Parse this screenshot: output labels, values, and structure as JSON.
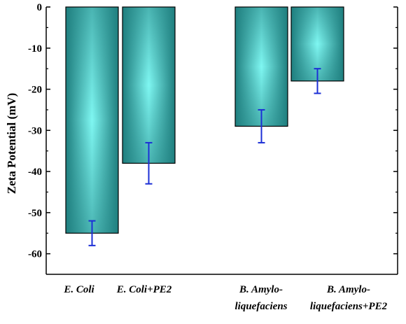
{
  "chart_data": {
    "type": "bar",
    "ylabel": "Zeta Potential (mV)",
    "xlabel": "",
    "ylim": [
      -65,
      0
    ],
    "yticks": [
      0,
      -10,
      -20,
      -30,
      -40,
      -50,
      -60
    ],
    "ytick_labels": [
      "0",
      "-10",
      "-20",
      "-30",
      "-40",
      "-50",
      "-60"
    ],
    "categories": [
      {
        "lines": [
          "E. Coli"
        ]
      },
      {
        "lines": [
          "E. Coli+PE2"
        ]
      },
      {
        "lines": [
          "B. Amylo-",
          "liquefaciens"
        ]
      },
      {
        "lines": [
          "B. Amylo-",
          "liquefaciens+PE2"
        ]
      }
    ],
    "values": [
      -55,
      -38,
      -29,
      -18
    ],
    "errors": [
      3,
      5,
      4,
      3
    ],
    "grid": false,
    "legend": "none"
  },
  "colors": {
    "bar_center": "#7ff7f2",
    "bar_edge": "#1f7f7f",
    "bar_outline": "#000000",
    "error_bar": "#1c2fd6",
    "axis": "#000000"
  }
}
